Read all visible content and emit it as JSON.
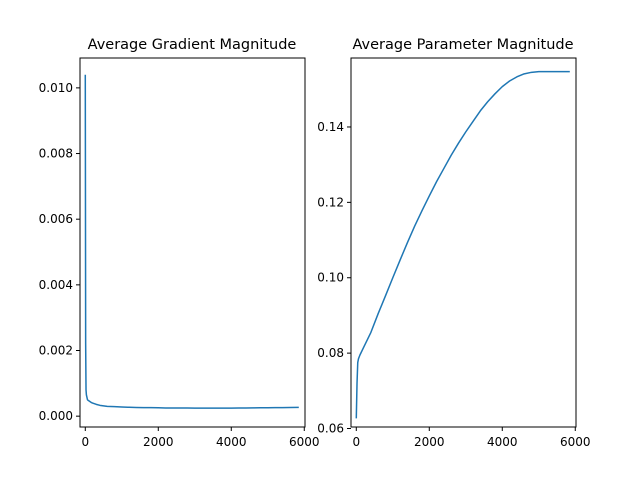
{
  "chart_data": [
    {
      "type": "line",
      "title": "Average Gradient Magnitude",
      "xlabel": "",
      "ylabel": "",
      "xlim": [
        -145,
        6020
      ],
      "ylim": [
        -0.00033,
        0.01091
      ],
      "xticks": [
        0,
        2000,
        4000,
        6000
      ],
      "xtick_labels": [
        "0",
        "2000",
        "4000",
        "6000"
      ],
      "yticks": [
        0.0,
        0.002,
        0.004,
        0.006,
        0.008,
        0.01
      ],
      "ytick_labels": [
        "0.000",
        "0.002",
        "0.004",
        "0.006",
        "0.008",
        "0.010"
      ],
      "grid": false,
      "series_color": "#1f77b4",
      "series": [
        {
          "x": [
            0,
            10,
            20,
            30,
            40,
            60,
            80,
            120,
            160,
            200,
            300,
            400,
            600,
            800,
            1000,
            1200,
            1400,
            1600,
            1800,
            2000,
            2200,
            2400,
            2600,
            2800,
            3000,
            3200,
            3400,
            3600,
            3800,
            4000,
            4200,
            4400,
            4600,
            4800,
            5000,
            5200,
            5400,
            5600,
            5850
          ],
          "y": [
            0.0104,
            0.0022,
            0.0008,
            0.00065,
            0.0006,
            0.0005,
            0.00048,
            0.00045,
            0.00042,
            0.0004,
            0.00036,
            0.00033,
            0.0003,
            0.00029,
            0.00028,
            0.00027,
            0.000265,
            0.00026,
            0.00026,
            0.000255,
            0.00025,
            0.00025,
            0.00025,
            0.000248,
            0.000245,
            0.000245,
            0.000245,
            0.000245,
            0.000245,
            0.000245,
            0.000248,
            0.00025,
            0.000252,
            0.000255,
            0.000258,
            0.00026,
            0.000262,
            0.000265,
            0.000268
          ]
        }
      ]
    },
    {
      "type": "line",
      "title": "Average Parameter Magnitude",
      "xlabel": "",
      "ylabel": "",
      "xlim": [
        -145,
        6020
      ],
      "ylim": [
        0.0604,
        0.1583
      ],
      "xticks": [
        0,
        2000,
        4000,
        6000
      ],
      "xtick_labels": [
        "0",
        "2000",
        "4000",
        "6000"
      ],
      "yticks": [
        0.06,
        0.08,
        0.1,
        0.12,
        0.14
      ],
      "ytick_labels": [
        "0.06",
        "0.08",
        "0.10",
        "0.12",
        "0.14"
      ],
      "grid": false,
      "series_color": "#1f77b4",
      "series": [
        {
          "x": [
            0,
            20,
            40,
            60,
            100,
            200,
            300,
            400,
            600,
            800,
            1000,
            1200,
            1400,
            1600,
            1800,
            2000,
            2200,
            2400,
            2600,
            2800,
            3000,
            3200,
            3400,
            3600,
            3800,
            4000,
            4200,
            4400,
            4600,
            4800,
            5000,
            5200,
            5400,
            5600,
            5850
          ],
          "y": [
            0.0627,
            0.072,
            0.0775,
            0.0785,
            0.0795,
            0.0815,
            0.0835,
            0.0855,
            0.0905,
            0.0952,
            0.1,
            0.1047,
            0.1093,
            0.1137,
            0.1178,
            0.1217,
            0.1255,
            0.129,
            0.1325,
            0.1357,
            0.1387,
            0.1415,
            0.1443,
            0.1467,
            0.1488,
            0.1507,
            0.1522,
            0.1533,
            0.1541,
            0.1545,
            0.1547,
            0.1547,
            0.1547,
            0.1547,
            0.1547
          ]
        }
      ]
    }
  ]
}
